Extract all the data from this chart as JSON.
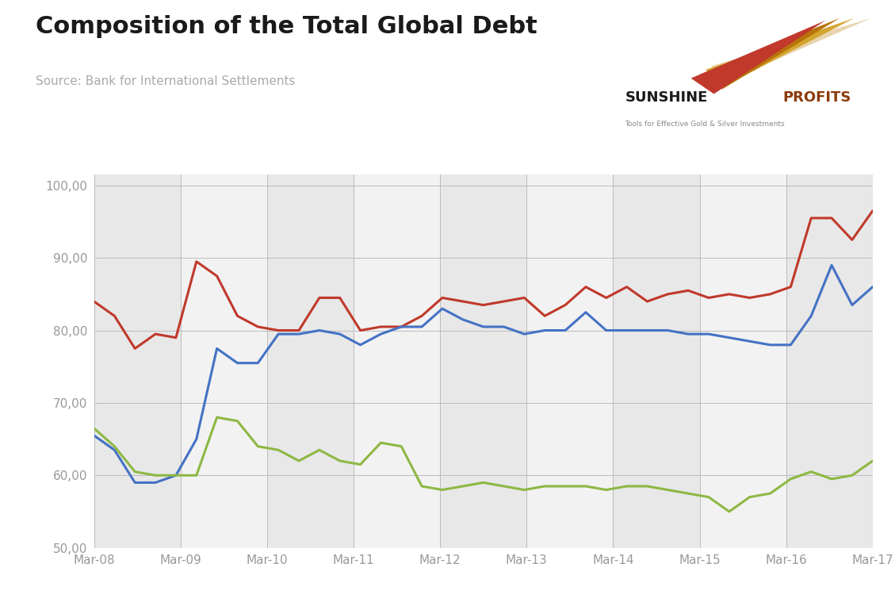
{
  "title": "Composition of the Total Global Debt",
  "source": "Source: Bank for International Settlements",
  "background_color": "#ffffff",
  "plot_bg_even": "#e8e8e8",
  "plot_bg_odd": "#f2f2f2",
  "ylim": [
    50,
    101.5
  ],
  "yticks": [
    50,
    60,
    70,
    80,
    90,
    100
  ],
  "ytick_labels": [
    "50,00",
    "60,00",
    "70,00",
    "80,00",
    "90,00",
    "100,00"
  ],
  "x_labels": [
    "Mar-08",
    "Mar-09",
    "Mar-10",
    "Mar-11",
    "Mar-12",
    "Mar-13",
    "Mar-14",
    "Mar-15",
    "Mar-16",
    "Mar-17"
  ],
  "red_line": [
    84.0,
    82.0,
    77.5,
    79.5,
    79.0,
    89.5,
    87.5,
    82.0,
    80.5,
    80.0,
    80.0,
    84.5,
    84.5,
    80.0,
    80.5,
    80.5,
    82.0,
    84.5,
    84.0,
    83.5,
    84.0,
    84.5,
    82.0,
    83.5,
    86.0,
    84.5,
    86.0,
    84.0,
    85.0,
    85.5,
    84.5,
    85.0,
    84.5,
    85.0,
    86.0,
    95.5,
    95.5,
    92.5,
    96.5
  ],
  "blue_line": [
    65.5,
    63.5,
    59.0,
    59.0,
    60.0,
    65.0,
    77.5,
    75.5,
    75.5,
    79.5,
    79.5,
    80.0,
    79.5,
    78.0,
    79.5,
    80.5,
    80.5,
    83.0,
    81.5,
    80.5,
    80.5,
    79.5,
    80.0,
    80.0,
    82.5,
    80.0,
    80.0,
    80.0,
    80.0,
    79.5,
    79.5,
    79.0,
    78.5,
    78.0,
    78.0,
    82.0,
    89.0,
    83.5,
    86.0
  ],
  "green_line": [
    66.5,
    64.0,
    60.5,
    60.0,
    60.0,
    60.0,
    68.0,
    67.5,
    64.0,
    63.5,
    62.0,
    63.5,
    62.0,
    61.5,
    64.5,
    64.0,
    58.5,
    58.0,
    58.5,
    59.0,
    58.5,
    58.0,
    58.5,
    58.5,
    58.5,
    58.0,
    58.5,
    58.5,
    58.0,
    57.5,
    57.0,
    55.0,
    57.0,
    57.5,
    59.5,
    60.5,
    59.5,
    60.0,
    62.0
  ],
  "red_color": "#c0392b",
  "blue_color": "#4472c4",
  "green_color": "#8db843",
  "line_width": 2.2,
  "grid_color": "#bbbbbb",
  "title_fontsize": 22,
  "source_fontsize": 11,
  "tick_fontsize": 11,
  "tick_color": "#999999"
}
